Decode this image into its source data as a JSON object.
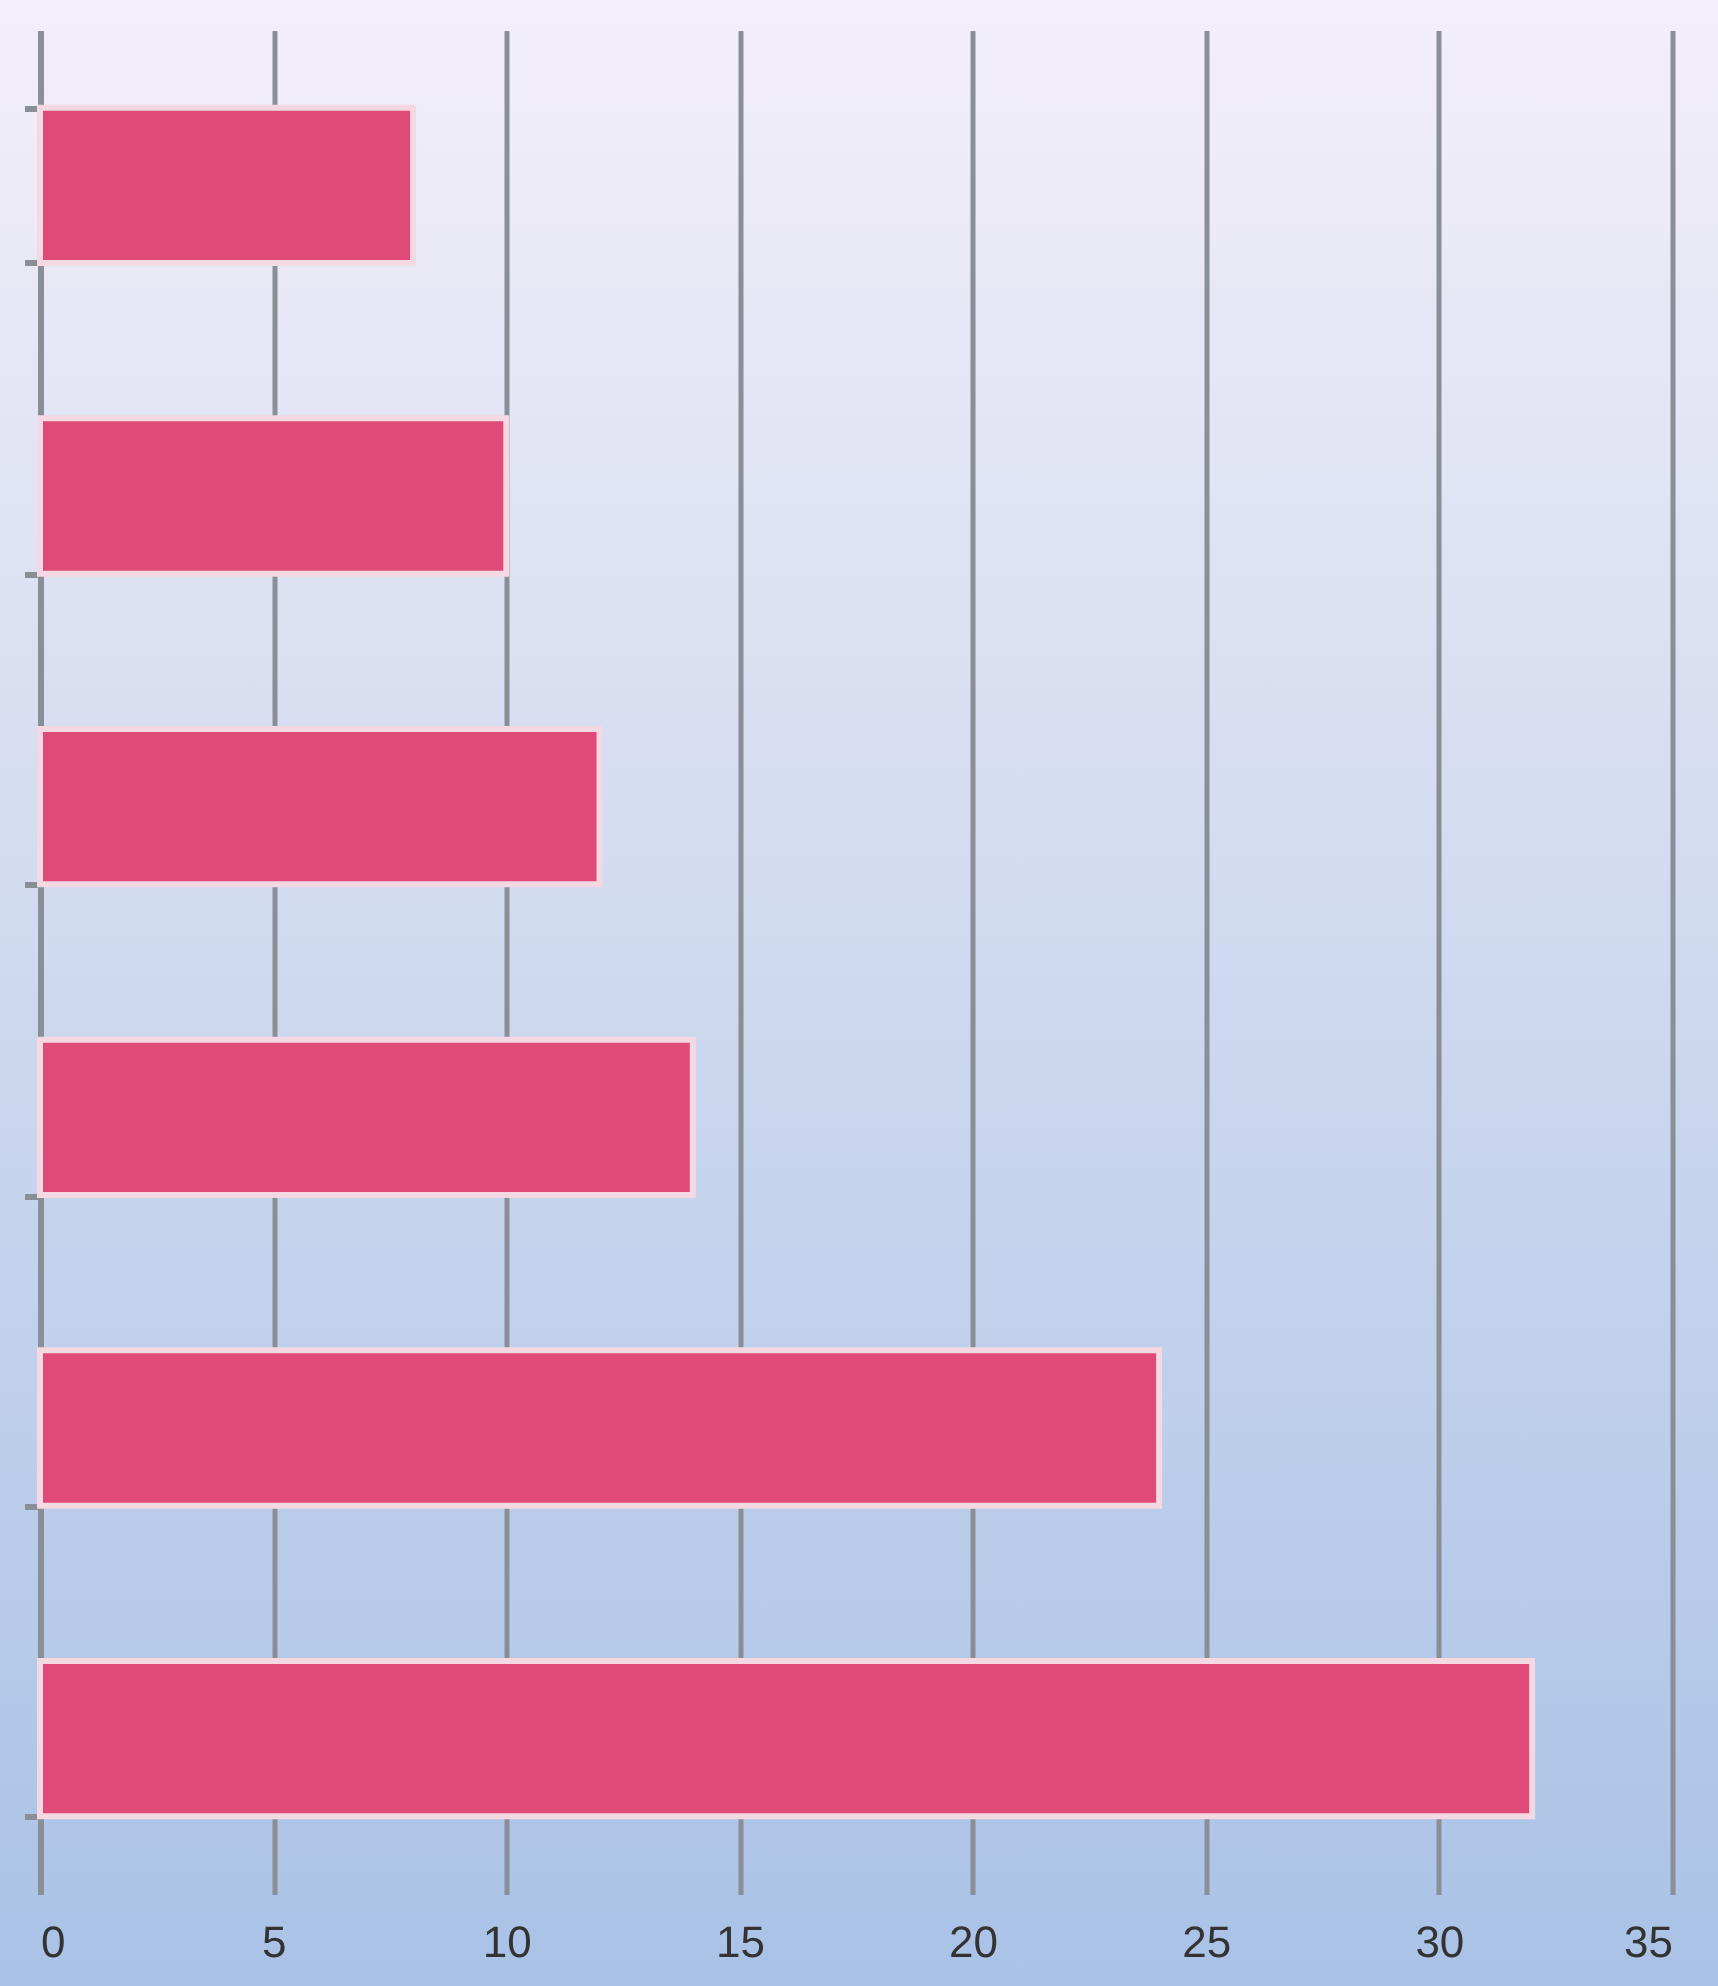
{
  "chart_data": {
    "type": "bar",
    "orientation": "horizontal",
    "categories": [
      null,
      null,
      null,
      null,
      null,
      null
    ],
    "values": [
      8,
      10,
      12,
      14,
      24,
      32
    ],
    "color": "#e04a78",
    "xlim": [
      0,
      35
    ],
    "xticks": [
      0,
      5,
      10,
      15,
      20,
      25,
      30,
      35
    ],
    "grid": "x"
  }
}
